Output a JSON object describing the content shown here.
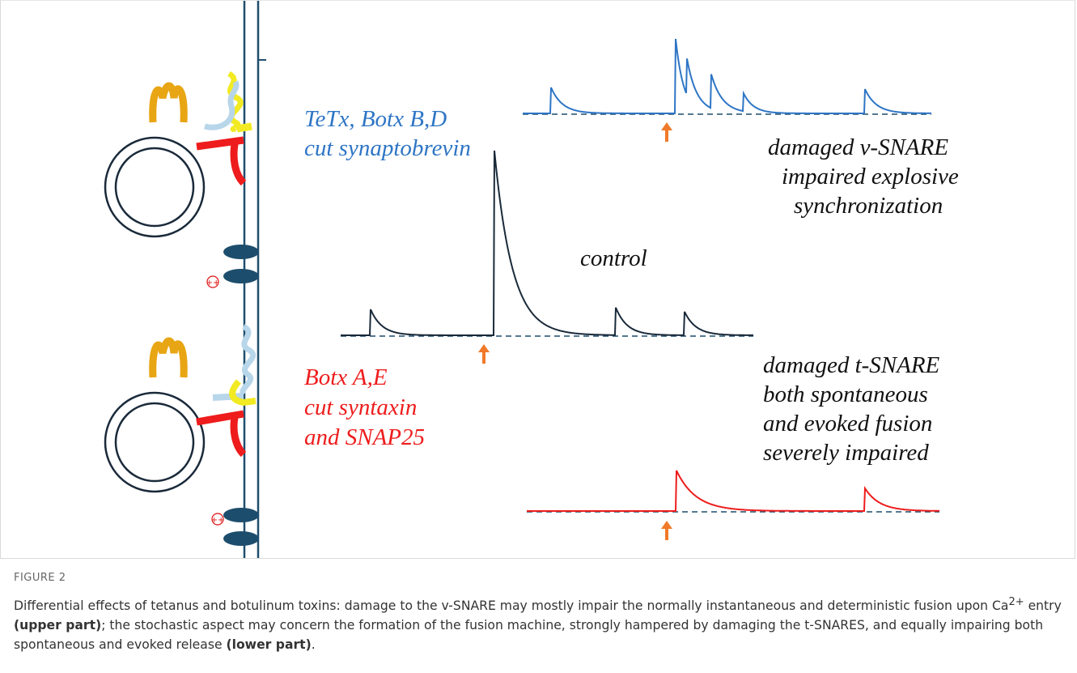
{
  "figure": {
    "upper_toxin": [
      "TeTx, Botx B,D",
      "cut synaptobrevin"
    ],
    "upper_effect": [
      "damaged v-SNARE",
      "impaired explosive",
      "synchronization"
    ],
    "control": "control",
    "lower_effect": [
      "damaged t-SNARE",
      "both spontaneous",
      "and evoked fusion",
      "severely impaired"
    ],
    "lower_toxin": [
      "Botx A,E",
      "cut syntaxin",
      "and SNAP25"
    ],
    "charge": [
      "++",
      "++"
    ]
  },
  "caption": {
    "label": "FIGURE 2",
    "segments": [
      {
        "text": "Differential effects of tetanus and botulinum toxins: damage to the v-SNARE may mostly impair the normally instantaneous and deterministic fusion upon Ca"
      },
      {
        "text": "2+",
        "style": "sup"
      },
      {
        "text": " entry "
      },
      {
        "text": "(upper part)",
        "style": "bold"
      },
      {
        "text": "; the stochastic aspect may concern the formation of the fusion machine, strongly hampered by damaging the t-SNARES, and equally impairing both spontaneous and evoked release "
      },
      {
        "text": "(lower part)",
        "style": "bold"
      },
      {
        "text": "."
      }
    ]
  }
}
